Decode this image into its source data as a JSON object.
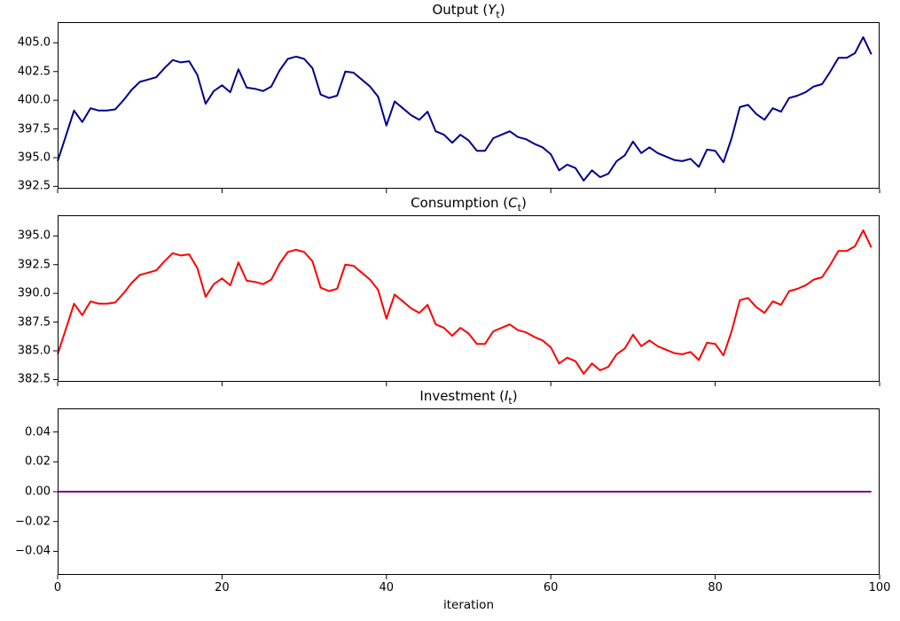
{
  "figure": {
    "background_color": "#ffffff",
    "xlabel": "iteration",
    "xlim": [
      0,
      100
    ],
    "x_tick_values": [
      0,
      20,
      40,
      60,
      80,
      100
    ],
    "x_tick_labels": [
      "0",
      "20",
      "40",
      "60",
      "80",
      "100"
    ],
    "grid": false,
    "legend": "none"
  },
  "chart_data": [
    {
      "id": "output",
      "type": "line",
      "title": {
        "prefix": "Output (",
        "variable": "Y",
        "subscript": "t",
        "suffix": ")"
      },
      "line_color": "#00008b",
      "line_width": 2,
      "x_mode": "index 0-99",
      "ylim": [
        392.3,
        406.8
      ],
      "y_tick_values": [
        405.0,
        402.5,
        400.0,
        397.5,
        395.0,
        392.5
      ],
      "y_tick_labels": [
        "405.0",
        "402.5",
        "400.0",
        "397.5",
        "395.0",
        "392.5"
      ],
      "values": [
        394.7,
        396.9,
        399.1,
        398.1,
        399.3,
        399.1,
        399.1,
        399.2,
        400.0,
        400.9,
        401.6,
        401.8,
        402.0,
        402.8,
        403.5,
        403.3,
        403.4,
        402.2,
        399.7,
        400.8,
        401.3,
        400.7,
        402.7,
        401.1,
        401.0,
        400.8,
        401.2,
        402.6,
        403.6,
        403.8,
        403.6,
        402.8,
        400.5,
        400.2,
        400.4,
        402.5,
        402.4,
        401.8,
        401.2,
        400.3,
        397.8,
        399.9,
        399.3,
        398.7,
        398.3,
        399.0,
        397.3,
        397.0,
        396.3,
        397.0,
        396.5,
        395.6,
        395.6,
        396.7,
        397.0,
        397.3,
        396.8,
        396.6,
        396.2,
        395.9,
        395.3,
        393.9,
        394.4,
        394.1,
        393.0,
        393.9,
        393.3,
        393.6,
        394.7,
        395.2,
        396.4,
        395.4,
        395.9,
        395.4,
        395.1,
        394.8,
        394.7,
        394.9,
        394.2,
        395.7,
        395.6,
        394.6,
        396.7,
        399.4,
        399.6,
        398.8,
        398.3,
        399.3,
        399.0,
        400.2,
        400.4,
        400.7,
        401.2,
        401.4,
        402.5,
        403.7,
        403.7,
        404.1,
        405.5,
        404.0
      ]
    },
    {
      "id": "consumption",
      "type": "line",
      "title": {
        "prefix": "Consumption (",
        "variable": "C",
        "subscript": "t",
        "suffix": ")"
      },
      "line_color": "#ff0000",
      "line_width": 2,
      "x_mode": "index 0-99",
      "ylim": [
        382.3,
        396.8
      ],
      "y_tick_values": [
        395.0,
        392.5,
        390.0,
        387.5,
        385.0,
        382.5
      ],
      "y_tick_labels": [
        "395.0",
        "392.5",
        "390.0",
        "387.5",
        "385.0",
        "382.5"
      ],
      "values": [
        384.7,
        386.9,
        389.1,
        388.1,
        389.3,
        389.1,
        389.1,
        389.2,
        390.0,
        390.9,
        391.6,
        391.8,
        392.0,
        392.8,
        393.5,
        393.3,
        393.4,
        392.2,
        389.7,
        390.8,
        391.3,
        390.7,
        392.7,
        391.1,
        391.0,
        390.8,
        391.2,
        392.6,
        393.6,
        393.8,
        393.6,
        392.8,
        390.5,
        390.2,
        390.4,
        392.5,
        392.4,
        391.8,
        391.2,
        390.3,
        387.8,
        389.9,
        389.3,
        388.7,
        388.3,
        389.0,
        387.3,
        387.0,
        386.3,
        387.0,
        386.5,
        385.6,
        385.6,
        386.7,
        387.0,
        387.3,
        386.8,
        386.6,
        386.2,
        385.9,
        385.3,
        383.9,
        384.4,
        384.1,
        383.0,
        383.9,
        383.3,
        383.6,
        384.7,
        385.2,
        386.4,
        385.4,
        385.9,
        385.4,
        385.1,
        384.8,
        384.7,
        384.9,
        384.2,
        385.7,
        385.6,
        384.6,
        386.7,
        389.4,
        389.6,
        388.8,
        388.3,
        389.3,
        389.0,
        390.2,
        390.4,
        390.7,
        391.2,
        391.4,
        392.5,
        393.7,
        393.7,
        394.1,
        395.5,
        394.0
      ]
    },
    {
      "id": "investment",
      "type": "line",
      "title": {
        "prefix": "Investment (",
        "variable": "I",
        "subscript": "t",
        "suffix": ")"
      },
      "line_color": "#800080",
      "line_width": 2,
      "x_mode": "index 0-99",
      "ylim": [
        -0.0558,
        0.0558
      ],
      "y_tick_values": [
        0.04,
        0.02,
        0.0,
        -0.02,
        -0.04
      ],
      "y_tick_labels": [
        "0.04",
        "0.02",
        "0.00",
        "−0.02",
        "−0.04"
      ],
      "values_constant": 0.0,
      "n_points": 100
    }
  ]
}
